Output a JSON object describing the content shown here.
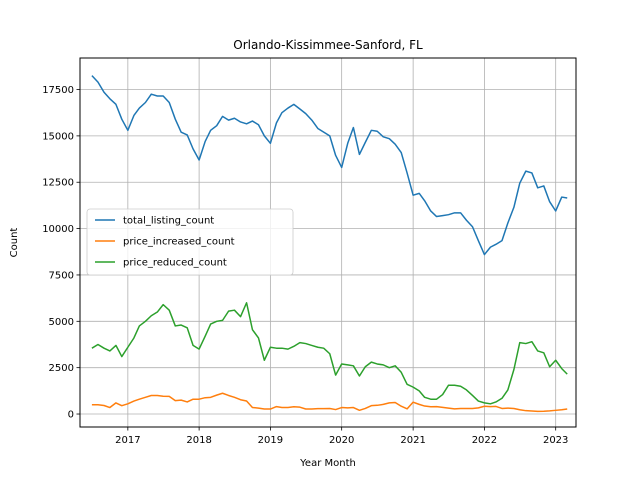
{
  "chart_data": {
    "type": "line",
    "title": "Orlando-Kissimmee-Sanford, FL",
    "xlabel": "Year Month",
    "ylabel": "Count",
    "x_axis_type": "date",
    "xlim": [
      "2016-05-01",
      "2023-04-15"
    ],
    "ylim": [
      -700,
      19200
    ],
    "x_ticks": [
      "2017-01-01",
      "2018-01-01",
      "2019-01-01",
      "2020-01-01",
      "2021-01-01",
      "2022-01-01",
      "2023-01-01"
    ],
    "x_tick_labels": [
      "2017",
      "2018",
      "2019",
      "2020",
      "2021",
      "2022",
      "2023"
    ],
    "y_ticks": [
      0,
      2500,
      5000,
      7500,
      10000,
      12500,
      15000,
      17500
    ],
    "y_tick_labels": [
      "0",
      "2500",
      "5000",
      "7500",
      "10000",
      "12500",
      "15000",
      "17500"
    ],
    "grid": true,
    "legend_position": "center-left",
    "x": [
      "2016-07",
      "2016-08",
      "2016-09",
      "2016-10",
      "2016-11",
      "2016-12",
      "2017-01",
      "2017-02",
      "2017-03",
      "2017-04",
      "2017-05",
      "2017-06",
      "2017-07",
      "2017-08",
      "2017-09",
      "2017-10",
      "2017-11",
      "2017-12",
      "2018-01",
      "2018-02",
      "2018-03",
      "2018-04",
      "2018-05",
      "2018-06",
      "2018-07",
      "2018-08",
      "2018-09",
      "2018-10",
      "2018-11",
      "2018-12",
      "2019-01",
      "2019-02",
      "2019-03",
      "2019-04",
      "2019-05",
      "2019-06",
      "2019-07",
      "2019-08",
      "2019-09",
      "2019-10",
      "2019-11",
      "2019-12",
      "2020-01",
      "2020-02",
      "2020-03",
      "2020-04",
      "2020-05",
      "2020-06",
      "2020-07",
      "2020-08",
      "2020-09",
      "2020-10",
      "2020-11",
      "2020-12",
      "2021-01",
      "2021-02",
      "2021-03",
      "2021-04",
      "2021-05",
      "2021-06",
      "2021-07",
      "2021-08",
      "2021-09",
      "2021-10",
      "2021-11",
      "2021-12",
      "2022-01",
      "2022-02",
      "2022-03",
      "2022-04",
      "2022-05",
      "2022-06",
      "2022-07",
      "2022-08",
      "2022-09",
      "2022-10",
      "2022-11",
      "2022-12",
      "2023-01",
      "2023-02",
      "2023-03"
    ],
    "series": [
      {
        "name": "total_listing_count",
        "color": "#1f77b4",
        "values": [
          18250,
          17900,
          17350,
          17000,
          16700,
          15900,
          15300,
          16100,
          16500,
          16800,
          17250,
          17150,
          17150,
          16800,
          15900,
          15200,
          15050,
          14300,
          13700,
          14700,
          15300,
          15550,
          16050,
          15850,
          15950,
          15750,
          15650,
          15800,
          15600,
          15000,
          14600,
          15700,
          16250,
          16500,
          16700,
          16450,
          16200,
          15850,
          15400,
          15200,
          15000,
          13950,
          13300,
          14600,
          15450,
          14000,
          14650,
          15300,
          15250,
          14950,
          14850,
          14550,
          14100,
          13000,
          11800,
          11900,
          11500,
          10950,
          10650,
          10700,
          10750,
          10850,
          10850,
          10450,
          10100,
          9350,
          8600,
          9000,
          9150,
          9350,
          10300,
          11150,
          12450,
          13100,
          13000,
          12200,
          12300,
          11450,
          10950,
          11700,
          11650
        ]
      },
      {
        "name": "price_increased_count",
        "color": "#ff7f0e",
        "values": [
          500,
          500,
          460,
          350,
          600,
          450,
          550,
          700,
          800,
          900,
          1000,
          1000,
          960,
          950,
          720,
          750,
          650,
          800,
          800,
          880,
          900,
          1020,
          1120,
          1000,
          900,
          770,
          700,
          350,
          320,
          270,
          270,
          400,
          350,
          350,
          390,
          370,
          270,
          270,
          290,
          290,
          300,
          240,
          350,
          330,
          350,
          200,
          300,
          450,
          470,
          520,
          600,
          620,
          420,
          280,
          640,
          520,
          430,
          390,
          400,
          360,
          320,
          280,
          300,
          300,
          300,
          330,
          420,
          400,
          410,
          300,
          320,
          300,
          230,
          180,
          160,
          140,
          150,
          170,
          200,
          230,
          270
        ]
      },
      {
        "name": "price_reduced_count",
        "color": "#2ca02c",
        "values": [
          3550,
          3750,
          3550,
          3400,
          3700,
          3100,
          3600,
          4100,
          4750,
          5000,
          5300,
          5500,
          5900,
          5600,
          4750,
          4800,
          4650,
          3700,
          3500,
          4200,
          4850,
          5000,
          5050,
          5550,
          5600,
          5250,
          6000,
          4550,
          4100,
          2900,
          3600,
          3550,
          3550,
          3500,
          3650,
          3850,
          3800,
          3700,
          3600,
          3550,
          3250,
          2100,
          2700,
          2650,
          2600,
          2050,
          2550,
          2800,
          2700,
          2650,
          2500,
          2600,
          2250,
          1600,
          1450,
          1250,
          900,
          800,
          800,
          1050,
          1550,
          1550,
          1500,
          1300,
          1000,
          700,
          600,
          550,
          650,
          850,
          1300,
          2400,
          3850,
          3800,
          3900,
          3400,
          3300,
          2550,
          2900,
          2450,
          2150
        ]
      }
    ]
  }
}
